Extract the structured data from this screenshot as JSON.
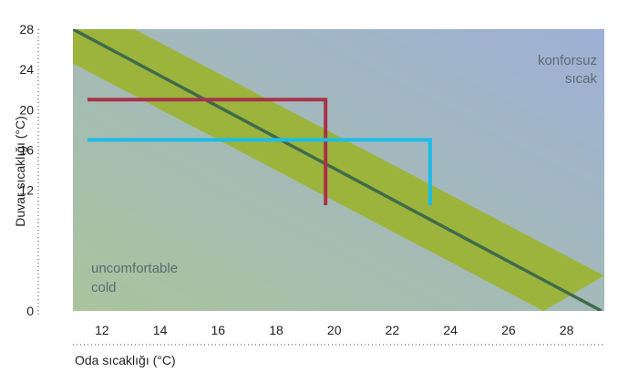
{
  "chart_data": {
    "type": "line",
    "title": "",
    "xlabel": "Oda sıcaklığı (°C)",
    "ylabel": "Duvar sıcaklığı (°C)",
    "xlim": [
      11,
      29.3
    ],
    "ylim": [
      0,
      28
    ],
    "x_ticks": [
      "12",
      "14",
      "16",
      "18",
      "20",
      "22",
      "24",
      "26",
      "28"
    ],
    "y_ticks": [
      "0",
      "12",
      "16",
      "20",
      "24",
      "28"
    ],
    "y_tick_values": [
      0,
      12,
      16,
      20,
      24,
      28
    ],
    "grid": false,
    "zone_labels": {
      "hot": [
        "konforsuz",
        "sıcak"
      ],
      "cold": [
        "uncomfortable",
        "cold"
      ]
    },
    "comfort_line": {
      "points": [
        [
          11,
          28
        ],
        [
          29.2,
          0
        ]
      ]
    },
    "comfort_band": {
      "upper": [
        [
          11,
          31.2
        ],
        [
          29.3,
          3.5
        ]
      ],
      "lower": [
        [
          11,
          24.6
        ],
        [
          27.2,
          0
        ]
      ]
    },
    "series": [
      {
        "color": "#a8324a",
        "points": [
          [
            11.5,
            21
          ],
          [
            19.7,
            21
          ],
          [
            19.7,
            10.5
          ]
        ]
      },
      {
        "color": "#1cbce6",
        "points": [
          [
            11.5,
            17
          ],
          [
            23.3,
            17
          ],
          [
            23.3,
            10.5
          ]
        ]
      }
    ],
    "colors": {
      "bg_left_bottom": "#a9c49c",
      "bg_right_top": "#9eb0d6",
      "band": "#9cb43c",
      "comfort_line": "#3f6b4a",
      "text": "#1f1f1f",
      "zone_text": "#5c6a72"
    }
  }
}
